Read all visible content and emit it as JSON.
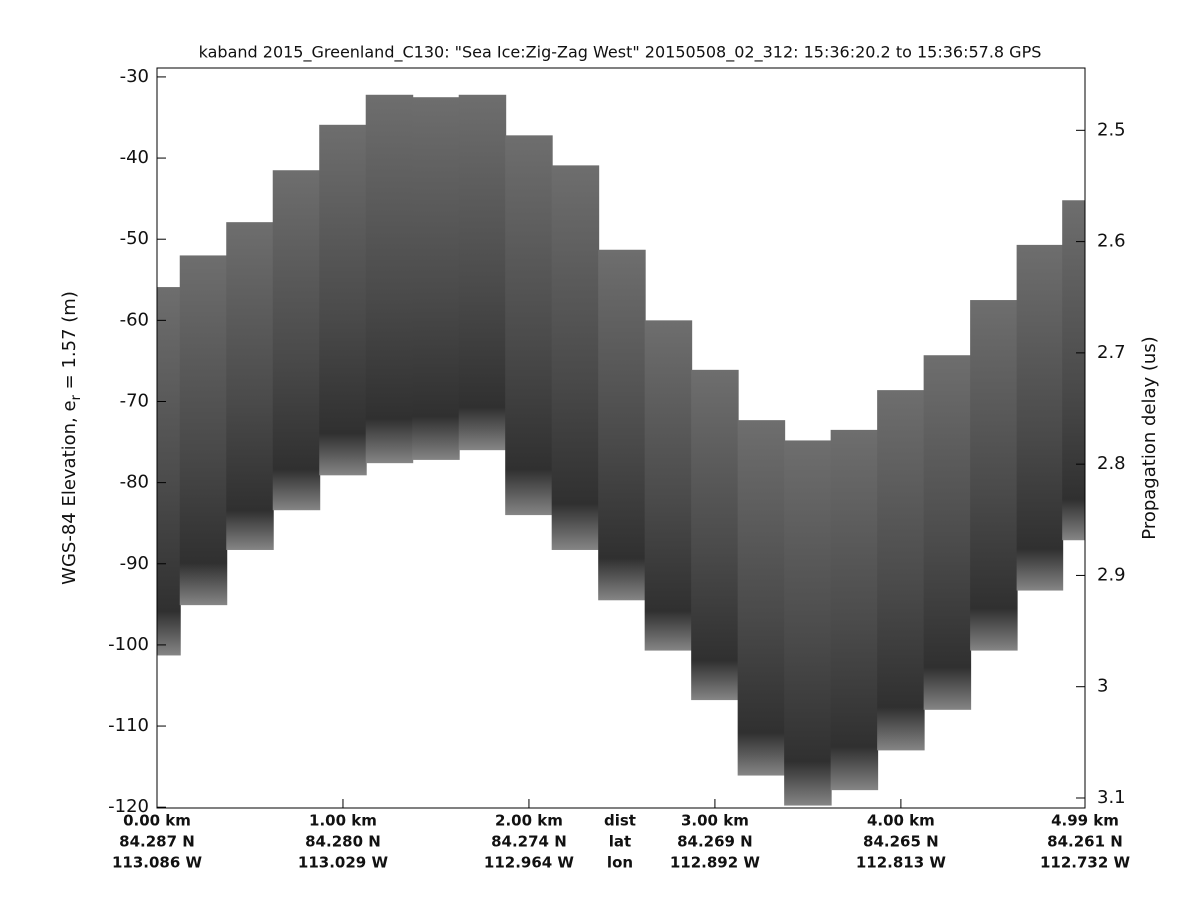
{
  "chart_data": {
    "type": "echogram",
    "title": "kaband 2015_Greenland_C130: \"Sea Ice:Zig-Zag West\"  20150508_02_312: 15:36:20.2 to 15:36:57.8 GPS",
    "ylabel_parts": [
      "WGS-84 Elevation, e",
      "r",
      " = 1.57 (m)"
    ],
    "y2label": "Propagation delay (us)",
    "x": [
      0,
      0.25,
      0.5,
      0.75,
      1.0,
      1.25,
      1.5,
      1.75,
      2.0,
      2.25,
      2.5,
      2.75,
      3.0,
      3.25,
      3.5,
      3.75,
      4.0,
      4.25,
      4.5,
      4.75,
      4.99
    ],
    "top": [
      -55.9,
      -52,
      -47.9,
      -41.5,
      -35.9,
      -32.2,
      -32.5,
      -32.2,
      -37.2,
      -40.9,
      -51.3,
      -60,
      -66.1,
      -72.3,
      -74.8,
      -73.5,
      -68.6,
      -64.3,
      -57.5,
      -50.7,
      -45.2
    ],
    "bottom": [
      -101.3,
      -95.1,
      -88.3,
      -83.4,
      -79.1,
      -77.6,
      -77.2,
      -76,
      -84,
      -88.3,
      -94.5,
      -100.7,
      -106.8,
      -116.1,
      -119.8,
      -117.9,
      -113,
      -108,
      -100.7,
      -93.3,
      -87.1
    ],
    "xlim": [
      0,
      4.99
    ],
    "xticks": [
      {
        "value": 0,
        "label": "0.00 km"
      },
      {
        "value": 1,
        "label": "1.00 km"
      },
      {
        "value": 2,
        "label": "2.00 km"
      },
      {
        "value": 3,
        "label": "3.00 km"
      },
      {
        "value": 4,
        "label": "4.00 km"
      },
      {
        "value": 4.99,
        "label": "4.99 km"
      }
    ],
    "xtick_lats": [
      "84.287 N",
      "84.280 N",
      "84.274 N",
      "84.269 N",
      "84.265 N",
      "84.261 N"
    ],
    "xtick_lons": [
      "113.086 W",
      "113.029 W",
      "112.964 W",
      "112.892 W",
      "112.813 W",
      "112.732 W"
    ],
    "x_row_labels": [
      "dist",
      "lat",
      "lon"
    ],
    "ylim": [
      -120.1,
      -28.9
    ],
    "yticks": [
      -30,
      -40,
      -50,
      -60,
      -70,
      -80,
      -90,
      -100,
      -110,
      -120
    ],
    "y2lim": [
      3.109,
      2.444
    ],
    "y2ticks": [
      2.5,
      2.6,
      2.7,
      2.8,
      2.9,
      3,
      3.1
    ],
    "color": "#4a4a4a"
  }
}
